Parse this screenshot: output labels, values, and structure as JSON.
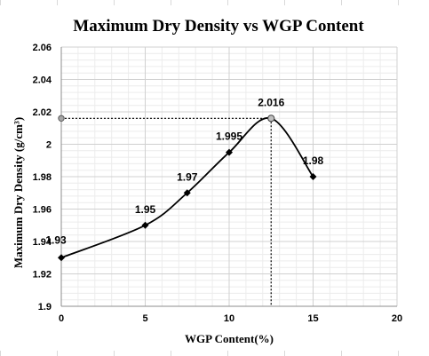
{
  "chart_data": {
    "type": "scatter",
    "title": "Maximum Dry Density vs WGP  Content",
    "xlabel": "WGP Content(%)",
    "ylabel": "Maximum Dry Density (g/cm³)",
    "xlim": [
      0,
      20
    ],
    "ylim": [
      1.9,
      2.06
    ],
    "x_ticks": [
      "0",
      "5",
      "10",
      "15",
      "20"
    ],
    "y_ticks": [
      "1.9",
      "1.92",
      "1.94",
      "1.96",
      "1.98",
      "2",
      "2.02",
      "2.04",
      "2.06"
    ],
    "grid": true,
    "legend": "none",
    "series": [
      {
        "x": [
          0,
          5,
          7.5,
          10,
          12.5,
          15
        ],
        "y": [
          1.93,
          1.95,
          1.97,
          1.995,
          2.016,
          1.98
        ],
        "labels": [
          "1.93",
          "1.95",
          "1.97",
          "1.995",
          "2.016",
          "1.98"
        ],
        "line": "smooth",
        "color": "#000000"
      }
    ],
    "annotation": {
      "x": 12.5,
      "y": 2.016,
      "style": "dotted reference lines to both axes"
    }
  }
}
